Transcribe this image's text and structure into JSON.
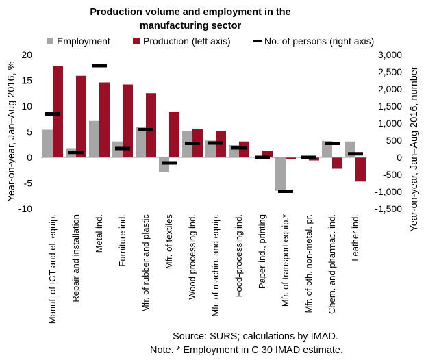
{
  "chart_data": {
    "type": "bar",
    "title": [
      "Production volume and employment in the",
      "manufacturing sector"
    ],
    "ylabel": "Year-on-year, Jan–Aug 2016, %",
    "y2label": "Year-on-year, Jan–Aug 2016, number",
    "ylim": [
      -10,
      20
    ],
    "y2lim": [
      -1500,
      3000
    ],
    "yticks": [
      "20",
      "15",
      "10",
      "5",
      "0",
      "-5",
      "-10"
    ],
    "y2ticks": [
      "3,000",
      "2,500",
      "2,000",
      "1,500",
      "1,000",
      "500",
      "0",
      "-500",
      "-1,000",
      "-1,500"
    ],
    "legend_position": "top",
    "categories": [
      "Manuf. of ICT and el. equip.",
      "Repair and installation",
      "Metal ind.",
      "Furniture ind.",
      "Mfr. of rubber and plastic",
      "Mfr. of textiles",
      "Wood processing ind.",
      "Mfr. of machin. and equip.",
      "Food-processing ind.",
      "Paper ind., printing",
      "Mfr. of transport equip.*",
      "Mfr. of oth. non-metal. pr.",
      "Chem. and pharmac. ind.",
      "Leather ind."
    ],
    "series": [
      {
        "name": "Employment",
        "color": "#a6a6a6",
        "axis": "left",
        "kind": "bar",
        "values": [
          5.4,
          1.8,
          7.1,
          3.1,
          5.9,
          -2.8,
          5.2,
          3.3,
          2.4,
          0.1,
          -6.5,
          -0.1,
          3.2,
          3.1
        ]
      },
      {
        "name": "Production (left axis)",
        "color": "#990f26",
        "axis": "left",
        "kind": "bar",
        "values": [
          17.8,
          15.9,
          14.6,
          14.2,
          12.5,
          8.8,
          5.6,
          5.1,
          3.1,
          1.3,
          -0.4,
          -0.6,
          -2.2,
          -4.7
        ]
      },
      {
        "name": "No. of persons (right axis)",
        "color": "#000000",
        "axis": "right",
        "kind": "marker",
        "values": [
          1270,
          145,
          2680,
          260,
          810,
          -160,
          410,
          420,
          280,
          0,
          -990,
          0,
          410,
          105
        ]
      }
    ]
  },
  "notes": [
    "Source: SURS; calculations by IMAD.",
    "Note. * Employment in C 30 IMAD estimate."
  ]
}
